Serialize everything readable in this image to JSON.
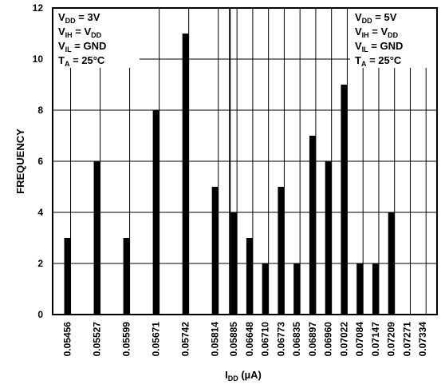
{
  "chart_data": {
    "type": "bar",
    "ylabel": "FREQUENCY",
    "xlabel": {
      "main": "I",
      "sub": "DD",
      "suffix": " (µA)"
    },
    "ylim": [
      0,
      12
    ],
    "yticks": [
      "0",
      "2",
      "4",
      "6",
      "8",
      "10",
      "12"
    ],
    "grid": true,
    "left_panel": {
      "categories": [
        "0.05456",
        "0.05527",
        "0.05599",
        "0.05671",
        "0.05742",
        "0.05814"
      ],
      "values": [
        3,
        6,
        3,
        8,
        11,
        5
      ]
    },
    "right_panel": {
      "categories": [
        "0.05885",
        "0.06648",
        "0.06710",
        "0.06773",
        "0.06835",
        "0.06897",
        "0.06960",
        "0.07022",
        "0.07084",
        "0.07147",
        "0.07209",
        "0.07271",
        "0.07334"
      ],
      "values": [
        4,
        3,
        2,
        5,
        2,
        7,
        6,
        9,
        2,
        2,
        4,
        0,
        0
      ]
    },
    "annotations": [
      {
        "position": "top-left",
        "lines": [
          {
            "main": "V",
            "sub": "DD",
            "suffix": " = 3V"
          },
          {
            "main": "V",
            "sub": "IH",
            "suffix": " = V",
            "sub2": "DD"
          },
          {
            "main": "V",
            "sub": "IL",
            "suffix": " = GND"
          },
          {
            "main": "T",
            "sub": "A",
            "suffix": " = 25°C"
          }
        ]
      },
      {
        "position": "top-right",
        "lines": [
          {
            "main": "V",
            "sub": "DD",
            "suffix": " = 5V"
          },
          {
            "main": "V",
            "sub": "IH",
            "suffix": " = V",
            "sub2": "DD"
          },
          {
            "main": "V",
            "sub": "IL",
            "suffix": " = GND"
          },
          {
            "main": "T",
            "sub": "A",
            "suffix": " = 25°C"
          }
        ]
      }
    ]
  }
}
